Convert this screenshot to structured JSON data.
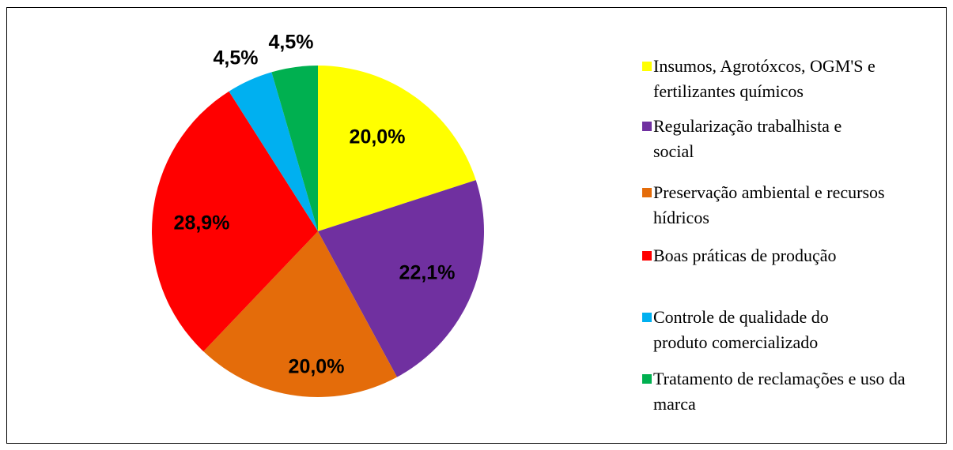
{
  "chart_data": {
    "type": "pie",
    "categories": [
      "Insumos, Agrotóxcos, OGM'S e fertilizantes químicos",
      "Regularização trabalhista e social",
      "Preservação ambiental e recursos hídricos",
      "Boas práticas de produção",
      "Controle de qualidade do produto comercializado",
      "Tratamento de reclamações e uso da marca"
    ],
    "values": [
      20.0,
      22.1,
      20.0,
      28.9,
      4.5,
      4.5
    ],
    "value_labels": [
      "20,0%",
      "22,1%",
      "20,0%",
      "28,9%",
      "4,5%",
      "4,5%"
    ],
    "colors": [
      "#ffff00",
      "#7030a0",
      "#e46c0a",
      "#ff0000",
      "#00b0f0",
      "#00b050"
    ],
    "legend": "right"
  }
}
